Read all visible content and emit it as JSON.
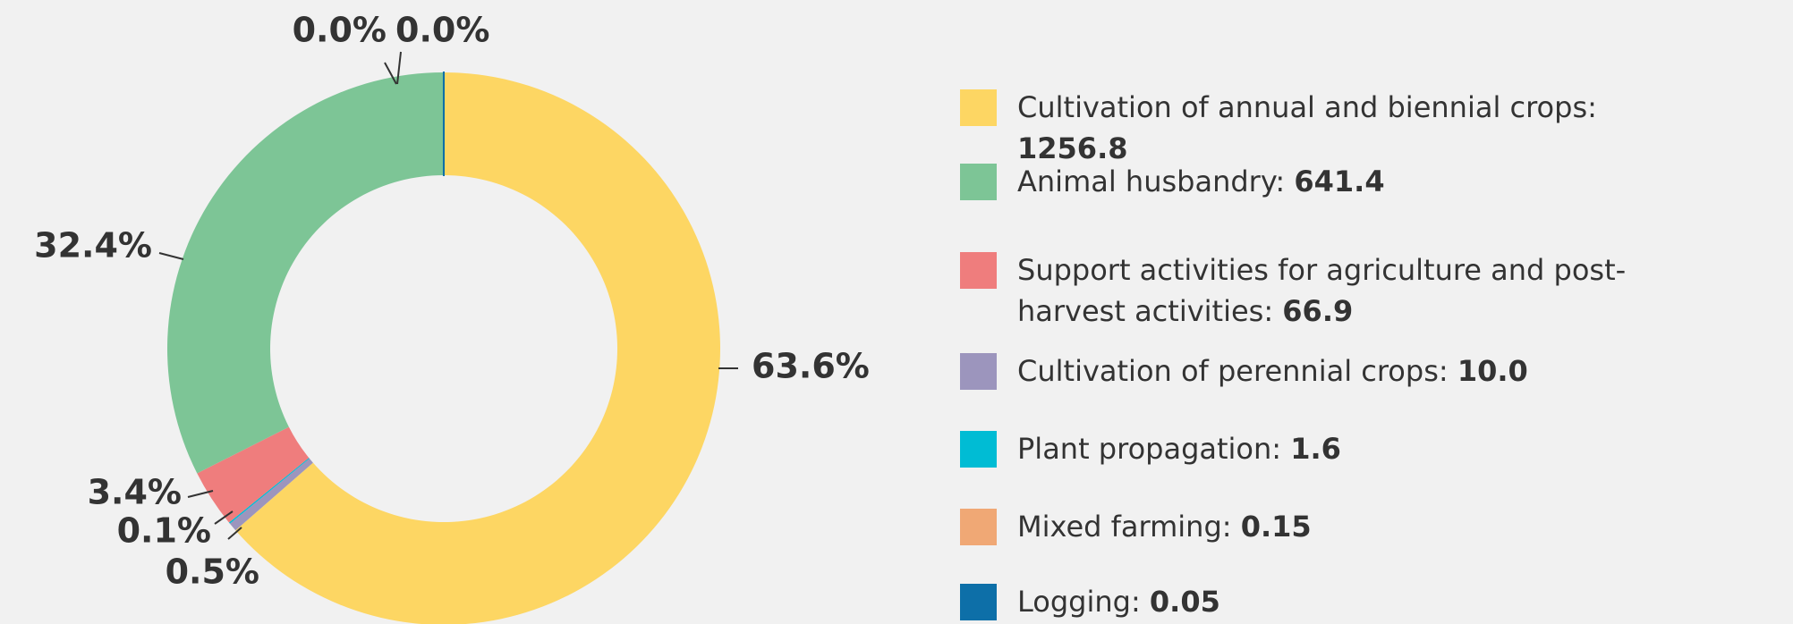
{
  "chart_data": {
    "type": "donut",
    "categories": [
      "Cultivation of annual and biennial crops:",
      "Animal husbandry:",
      "Support activities for agriculture and post-harvest activities:",
      "Cultivation of perennial crops:",
      "Plant propagation:",
      "Mixed farming:",
      "Logging:"
    ],
    "values": [
      1256.8,
      641.4,
      66.9,
      10.0,
      1.6,
      0.15,
      0.05
    ],
    "value_labels": [
      "1256.8",
      "641.4",
      "66.9",
      "10.0",
      "1.6",
      "0.15",
      "0.05"
    ],
    "shares": [
      63.6,
      32.4,
      3.4,
      0.5,
      0.1,
      0.0,
      0.0
    ],
    "share_labels": [
      "63.6%",
      "32.4%",
      "3.4%",
      "0.5%",
      "0.1%",
      "0.0%",
      "0.0%"
    ],
    "colors": [
      "#fdd663",
      "#7dc596",
      "#ef7d7d",
      "#9c95bd",
      "#00bcd4",
      "#f0a875",
      "#0d6fa8"
    ]
  }
}
